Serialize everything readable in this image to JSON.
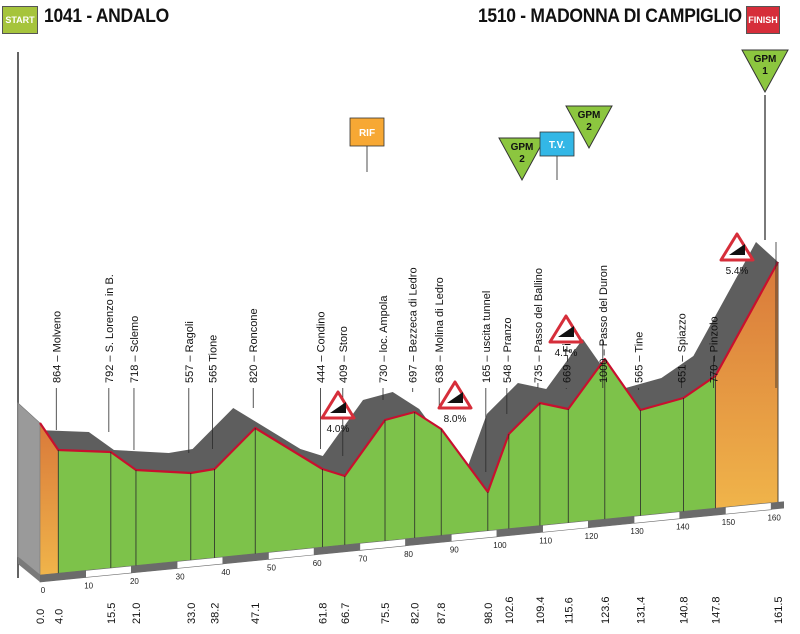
{
  "header": {
    "start_badge": "START",
    "start_city": "1041 - ANDALO",
    "finish_city": "1510 - MADONNA DI CAMPIGLIO",
    "finish_badge": "FINISH"
  },
  "colors": {
    "climb": "#e8963a",
    "valley": "#7dc24a",
    "ridge": "#5e5e5e",
    "road": "#c8102e",
    "gpm": "#8cc63f",
    "tv": "#33b7e6",
    "rif": "#f7a834"
  },
  "tick_labels": [
    "0",
    "10",
    "20",
    "30",
    "40",
    "50",
    "60",
    "70",
    "80",
    "90",
    "100",
    "110",
    "120",
    "130",
    "140",
    "150",
    "160"
  ],
  "points": [
    {
      "km": "0.0",
      "place": "",
      "elev": 1041
    },
    {
      "km": "4.0",
      "place": "864  –  Molveno",
      "elev": 864
    },
    {
      "km": "15.5",
      "place": "792  –  S. Lorenzo in B.",
      "elev": 792
    },
    {
      "km": "21.0",
      "place": "718  –  Sclemo",
      "elev": 718
    },
    {
      "km": "33.0",
      "place": "557  –  Ragoli",
      "elev": 557
    },
    {
      "km": "38.2",
      "place": "565  Tione",
      "elev": 565
    },
    {
      "km": "47.1",
      "place": "820  –  Roncone",
      "elev": 820
    },
    {
      "km": "61.8",
      "place": "444  –  Condino",
      "elev": 444
    },
    {
      "km": "66.7",
      "place": "409  –  Storo",
      "elev": 409
    },
    {
      "km": "75.5",
      "place": "730  –  loc. Ampola",
      "elev": 730
    },
    {
      "km": "82.0",
      "place": "697  –  Bezzeca di Ledro",
      "elev": 697
    },
    {
      "km": "87.8",
      "place": "638  –  Molina di Ledro",
      "elev": 638
    },
    {
      "km": "98.0",
      "place": "165  –  uscita tunnel",
      "elev": 165
    },
    {
      "km": "102.6",
      "place": "548  –  Pranzo",
      "elev": 548
    },
    {
      "km": "109.4",
      "place": "735  –  Passo del Ballino",
      "elev": 735
    },
    {
      "km": "115.6",
      "place": "669  –  Fiavé",
      "elev": 669
    },
    {
      "km": "123.6",
      "place": "1000  –  Passo del Duron",
      "elev": 1000
    },
    {
      "km": "131.4",
      "place": "565  –  Tine",
      "elev": 565
    },
    {
      "km": "140.8",
      "place": "651  –  Spiazzo",
      "elev": 651
    },
    {
      "km": "147.8",
      "place": "770  –  Pinzolo",
      "elev": 770
    },
    {
      "km": "161.5",
      "place": "",
      "elev": 1510
    }
  ],
  "markers": [
    {
      "type": "gpm",
      "line1": "GPM",
      "line2": "2",
      "km": 109.4
    },
    {
      "type": "tv",
      "line1": "T.V.",
      "km": 115.6
    },
    {
      "type": "gpm",
      "line1": "GPM",
      "line2": "2",
      "km": 123.6
    },
    {
      "type": "gpm",
      "line1": "GPM",
      "line2": "1",
      "km": 161.5
    },
    {
      "type": "rif",
      "line1": "RIF",
      "km": 75.5
    }
  ],
  "gradients": [
    {
      "label": "4.0%"
    },
    {
      "label": "8.0%"
    },
    {
      "label": "4.1%"
    },
    {
      "label": "5.4%"
    }
  ]
}
